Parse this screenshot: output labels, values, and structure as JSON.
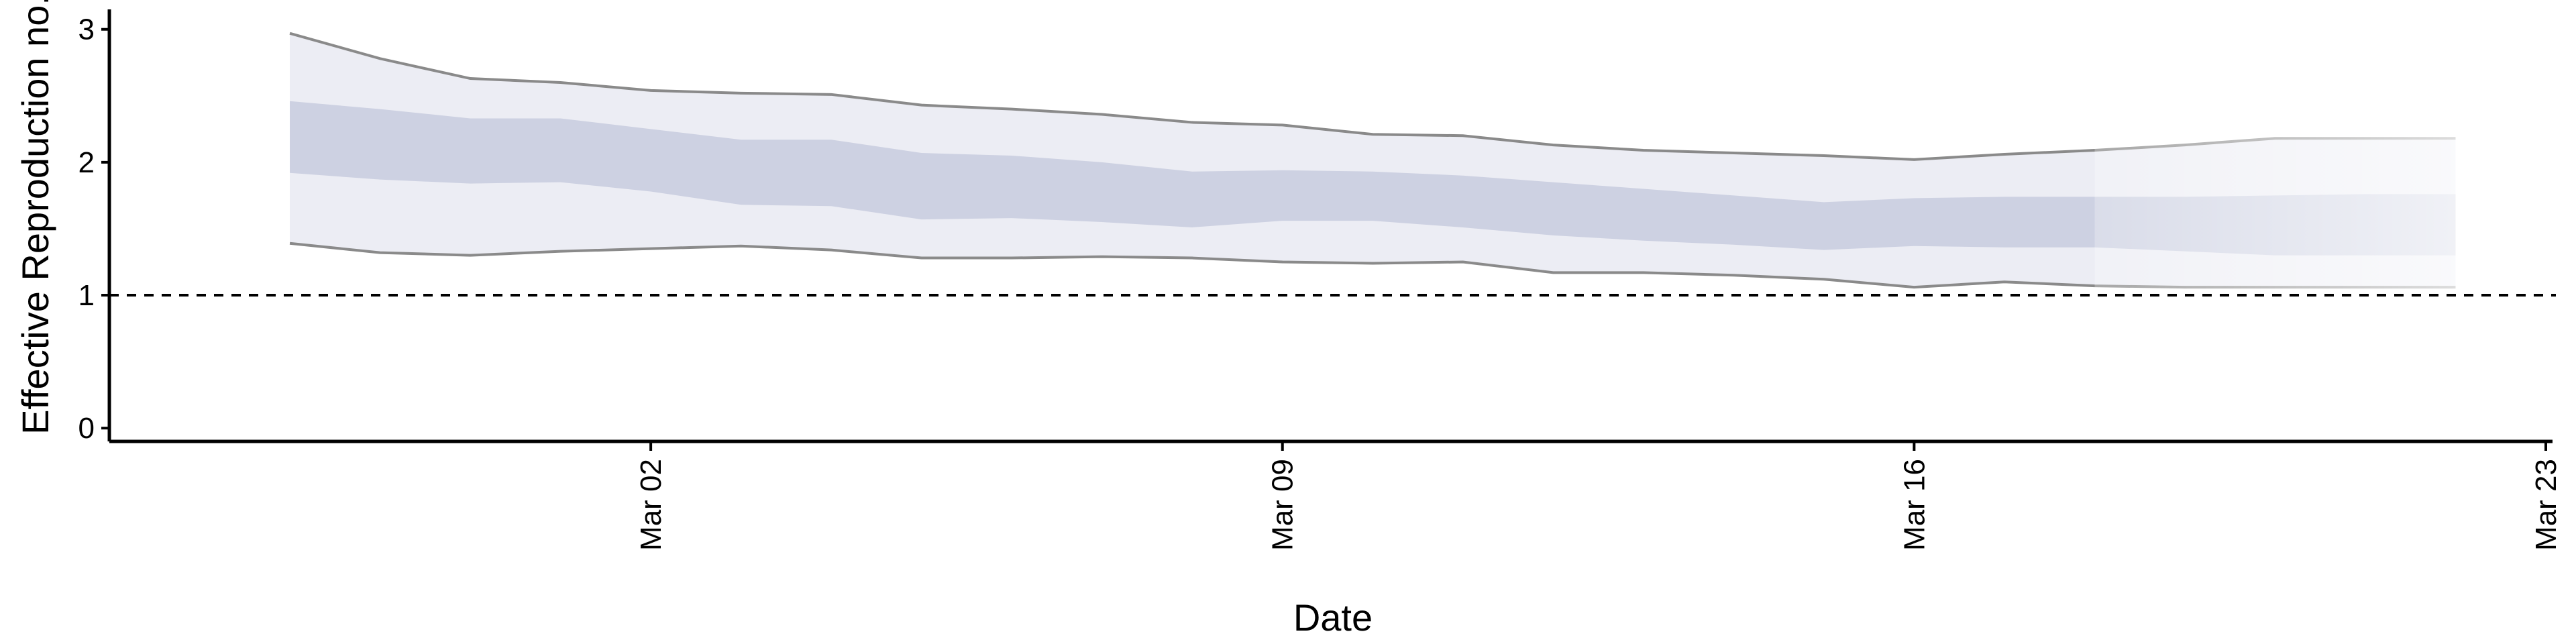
{
  "chart_data": {
    "type": "area",
    "xlabel": "Date",
    "ylabel": "Effective Reproduction no.",
    "ylim": [
      -0.1,
      3.15
    ],
    "yticks": [
      0,
      1,
      2,
      3
    ],
    "xticks": [
      {
        "date": "2020-03-02",
        "label": "Mar 02"
      },
      {
        "date": "2020-03-09",
        "label": "Mar 09"
      },
      {
        "date": "2020-03-16",
        "label": "Mar 16"
      },
      {
        "date": "2020-03-23",
        "label": "Mar 23"
      }
    ],
    "xlim": [
      "2020-02-25",
      "2020-03-23"
    ],
    "reference_line": {
      "y": 1,
      "style": "dashed"
    },
    "grid": false,
    "band_color": "#b5b9d3",
    "series": [
      {
        "x": [
          "2020-02-27",
          "2020-02-28",
          "2020-02-29",
          "2020-03-01",
          "2020-03-02",
          "2020-03-03",
          "2020-03-04",
          "2020-03-05",
          "2020-03-06",
          "2020-03-07",
          "2020-03-08",
          "2020-03-09",
          "2020-03-10",
          "2020-03-11",
          "2020-03-12",
          "2020-03-13",
          "2020-03-14",
          "2020-03-15",
          "2020-03-16",
          "2020-03-17",
          "2020-03-18",
          "2020-03-19",
          "2020-03-20",
          "2020-03-21",
          "2020-03-22"
        ],
        "upper_90": [
          2.97,
          2.78,
          2.63,
          2.6,
          2.54,
          2.52,
          2.51,
          2.43,
          2.4,
          2.36,
          2.3,
          2.28,
          2.21,
          2.2,
          2.13,
          2.09,
          2.07,
          2.05,
          2.02,
          2.06,
          2.09,
          2.13,
          2.18,
          2.18,
          2.18
        ],
        "upper_50": [
          2.46,
          2.4,
          2.33,
          2.33,
          2.25,
          2.17,
          2.17,
          2.07,
          2.05,
          2.0,
          1.93,
          1.94,
          1.93,
          1.9,
          1.85,
          1.8,
          1.75,
          1.7,
          1.73,
          1.74,
          1.74,
          1.74,
          1.75,
          1.76,
          1.76
        ],
        "lower_50": [
          1.92,
          1.87,
          1.84,
          1.85,
          1.78,
          1.68,
          1.67,
          1.57,
          1.58,
          1.55,
          1.51,
          1.56,
          1.56,
          1.51,
          1.45,
          1.41,
          1.38,
          1.34,
          1.37,
          1.36,
          1.36,
          1.33,
          1.3,
          1.3,
          1.3
        ],
        "lower_90": [
          1.39,
          1.32,
          1.3,
          1.33,
          1.35,
          1.37,
          1.34,
          1.28,
          1.28,
          1.29,
          1.28,
          1.25,
          1.24,
          1.25,
          1.17,
          1.17,
          1.15,
          1.12,
          1.06,
          1.1,
          1.07,
          1.06,
          1.06,
          1.06,
          1.06
        ],
        "fade_from": "2020-03-18"
      }
    ]
  }
}
